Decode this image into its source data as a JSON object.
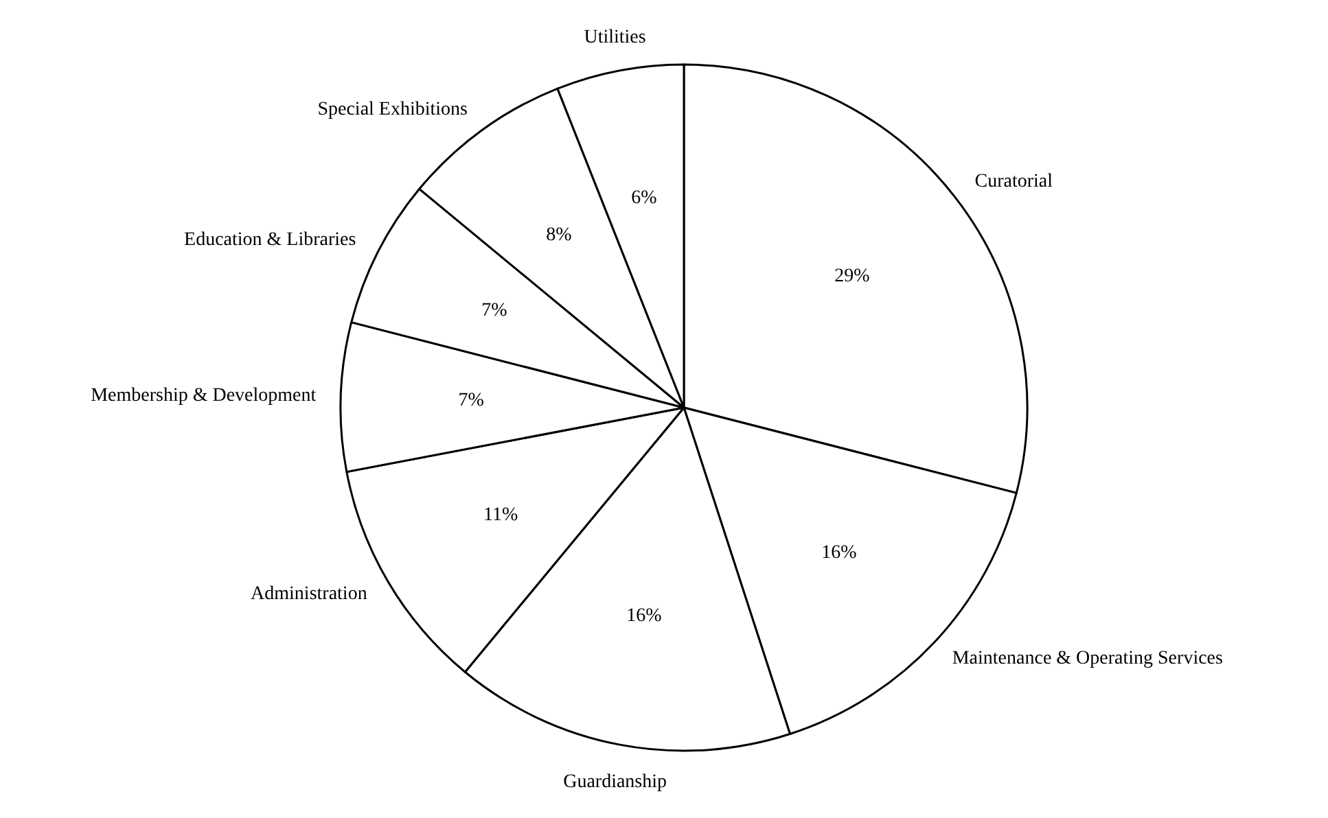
{
  "chart_data": {
    "type": "pie",
    "categories": [
      "Curatorial",
      "Maintenance & Operating Services",
      "Guardianship",
      "Administration",
      "Membership & Development",
      "Education & Libraries",
      "Special Exhibitions",
      "Utilities"
    ],
    "values": [
      29,
      16,
      16,
      11,
      7,
      7,
      8,
      6
    ],
    "colors": [
      "#ffffff",
      "#ffffff",
      "#ffffff",
      "#ffffff",
      "#ffffff",
      "#ffffff",
      "#ffffff",
      "#ffffff"
    ],
    "value_labels": [
      "29%",
      "16%",
      "16%",
      "11%",
      "7%",
      "7%",
      "8%",
      "6%"
    ]
  }
}
